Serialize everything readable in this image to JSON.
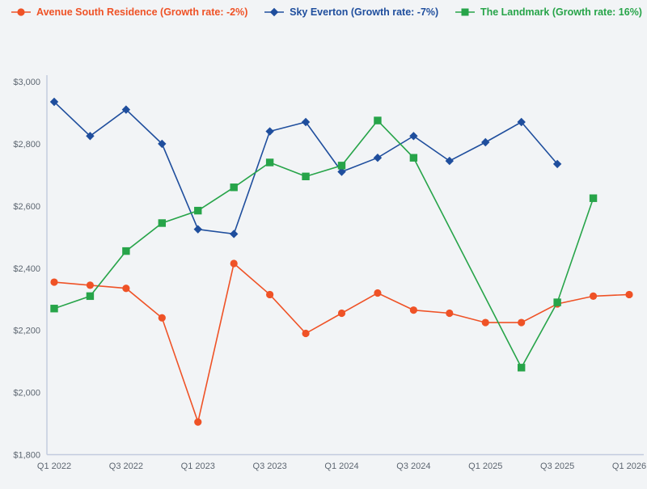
{
  "colors": {
    "background": "#f2f4f6",
    "axis_line": "#c3cbde",
    "tick_text": "#5d6671",
    "series_orange": "#ef5226",
    "series_blue": "#1f4e9d",
    "series_green": "#27a449"
  },
  "legend": [
    {
      "label": "Avenue South Residence (Growth rate: -2%)",
      "color": "#ef5226",
      "marker": "circle"
    },
    {
      "label": "Sky Everton (Growth rate: -7%)",
      "color": "#1f4e9d",
      "marker": "diamond"
    },
    {
      "label": "The Landmark (Growth rate: 16%)",
      "color": "#27a449",
      "marker": "square"
    }
  ],
  "chart_data": {
    "type": "line",
    "title": "",
    "xlabel": "",
    "ylabel": "",
    "grid": false,
    "legend_position": "top",
    "ylim": [
      1800,
      3000
    ],
    "y_ticks": [
      1800,
      2000,
      2200,
      2400,
      2600,
      2800,
      3000
    ],
    "y_tick_labels": [
      "$1,800",
      "$2,000",
      "$2,200",
      "$2,400",
      "$2,600",
      "$2,800",
      "$3,000"
    ],
    "x": [
      "Q1 2022",
      "Q2 2022",
      "Q3 2022",
      "Q4 2022",
      "Q1 2023",
      "Q2 2023",
      "Q3 2023",
      "Q4 2023",
      "Q1 2024",
      "Q2 2024",
      "Q3 2024",
      "Q4 2024",
      "Q1 2025",
      "Q2 2025",
      "Q3 2025",
      "Q4 2025",
      "Q1 2026"
    ],
    "x_axis_tick_labels": [
      "Q1 2022",
      "Q3 2022",
      "Q1 2023",
      "Q3 2023",
      "Q1 2024",
      "Q3 2024",
      "Q1 2025",
      "Q3 2025",
      "Q1 2026"
    ],
    "series": [
      {
        "name": "Avenue South Residence (Growth rate: -2%)",
        "marker": "circle",
        "color": "#ef5226",
        "values": [
          2355,
          2345,
          2335,
          2240,
          1905,
          2415,
          2315,
          2190,
          2255,
          2320,
          2265,
          2255,
          2225,
          2225,
          2285,
          2310,
          2315
        ]
      },
      {
        "name": "Sky Everton (Growth rate: -7%)",
        "marker": "diamond",
        "color": "#1f4e9d",
        "values": [
          2935,
          2825,
          2910,
          2800,
          2525,
          2510,
          2840,
          2870,
          2710,
          2755,
          2825,
          2745,
          2805,
          2870,
          2735,
          null,
          null
        ]
      },
      {
        "name": "The Landmark (Growth rate: 16%)",
        "marker": "square",
        "color": "#27a449",
        "values": [
          2270,
          2310,
          2455,
          2545,
          2585,
          2660,
          2740,
          2695,
          2730,
          2875,
          2755,
          null,
          null,
          2080,
          2290,
          2625,
          null
        ]
      }
    ]
  }
}
